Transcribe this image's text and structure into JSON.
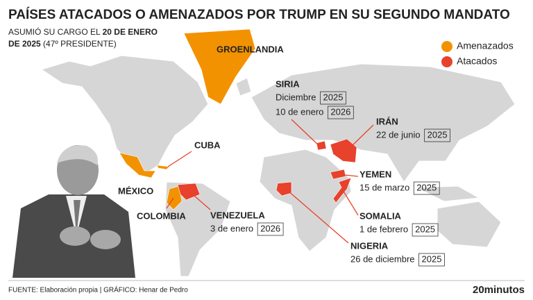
{
  "header": {
    "title": "PAÍSES ATACADOS O AMENAZADOS POR TRUMP EN SU SEGUNDO MANDATO",
    "subtitle_start": "ASUMIÓ SU CARGO EL",
    "subtitle_bold_1": "20 DE ENERO",
    "subtitle_bold_2": "DE 2025",
    "subtitle_end": "(47º PRESIDENTE)"
  },
  "legend": [
    {
      "label": "Amenazados",
      "color": "#f39200"
    },
    {
      "label": "Atacados",
      "color": "#e8412c"
    }
  ],
  "countries": [
    {
      "name": "GROENLANDIA",
      "color": "#f39200",
      "dates": []
    },
    {
      "name": "SIRIA",
      "color": "#e8412c",
      "dates": [
        {
          "text": "Diciembre",
          "year": 2025
        },
        {
          "text": "10 de enero",
          "year": 2026
        }
      ]
    },
    {
      "name": "IRÁN",
      "color": "#e8412c",
      "dates": [
        {
          "text": "22 de junio",
          "year": 2025
        }
      ]
    },
    {
      "name": "CUBA",
      "color": "#f39200",
      "dates": []
    },
    {
      "name": "MÉXICO",
      "color": "#f39200",
      "dates": []
    },
    {
      "name": "COLOMBIA",
      "color": "#f39200",
      "dates": []
    },
    {
      "name": "VENEZUELA",
      "color": "#e8412c",
      "dates": [
        {
          "text": "3 de enero",
          "year": 2026
        }
      ]
    },
    {
      "name": "YEMEN",
      "color": "#e8412c",
      "dates": [
        {
          "text": "15 de marzo",
          "year": 2025
        }
      ]
    },
    {
      "name": "SOMALIA",
      "color": "#e8412c",
      "dates": [
        {
          "text": "1 de febrero",
          "year": 2025
        }
      ]
    },
    {
      "name": "NIGERIA",
      "color": "#e8412c",
      "dates": [
        {
          "text": "26 de diciembre",
          "year": 2025
        }
      ]
    }
  ],
  "footer": {
    "source": "FUENTE: Elaboración propia | GRÁFICO: Henar de Pedro",
    "brand": "20minutos"
  }
}
